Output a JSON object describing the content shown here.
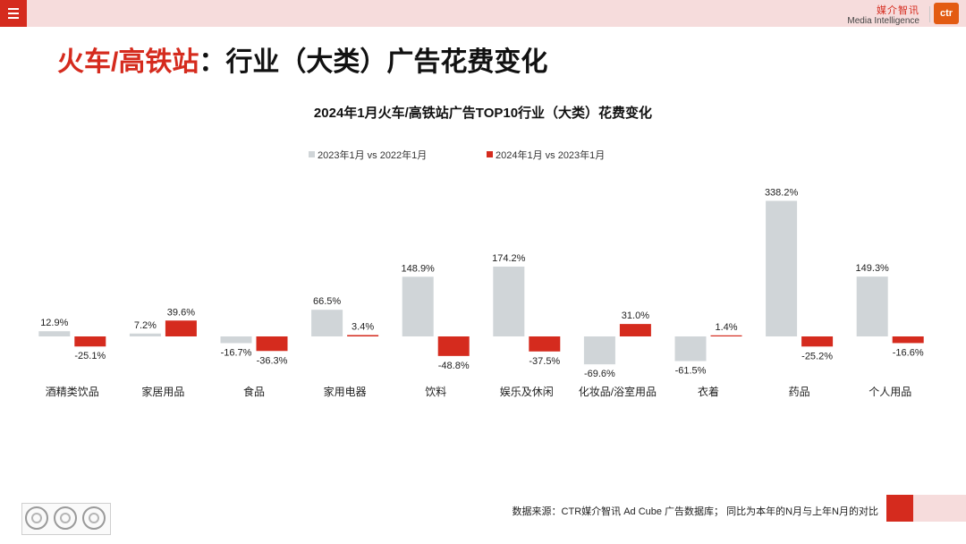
{
  "header": {
    "menu_icon": "hamburger-menu-icon",
    "brand_cn": "媒介智讯",
    "brand_en": "Media Intelligence",
    "logo_text": "ctr"
  },
  "page": {
    "title_highlight": "火车/高铁站",
    "title_rest": "：行业（大类）广告花费变化"
  },
  "chart_data": {
    "type": "bar",
    "title": "2024年1月火车/高铁站广告TOP10行业（大类）花费变化",
    "categories": [
      "酒精类饮品",
      "家居用品",
      "食品",
      "家用电器",
      "饮料",
      "娱乐及休闲",
      "化妆品/浴室用品",
      "衣着",
      "药品",
      "个人用品"
    ],
    "series": [
      {
        "name": "2023年1月 vs 2022年1月",
        "color": "#d0d5d8",
        "values": [
          12.9,
          7.2,
          -16.7,
          66.5,
          148.9,
          174.2,
          -69.6,
          -61.5,
          338.2,
          149.3
        ]
      },
      {
        "name": "2024年1月 vs 2023年1月",
        "color": "#d52b1e",
        "values": [
          -25.1,
          39.6,
          -36.3,
          3.4,
          -48.8,
          -37.5,
          31.0,
          1.4,
          -25.2,
          -16.6
        ]
      }
    ],
    "value_suffix": "%",
    "legend_position": "top-center",
    "grid": false
  },
  "footer": {
    "source": "数据来源：CTR媒介智讯 Ad Cube 广告数据库；  同比为本年的N月与上年N月的对比"
  }
}
